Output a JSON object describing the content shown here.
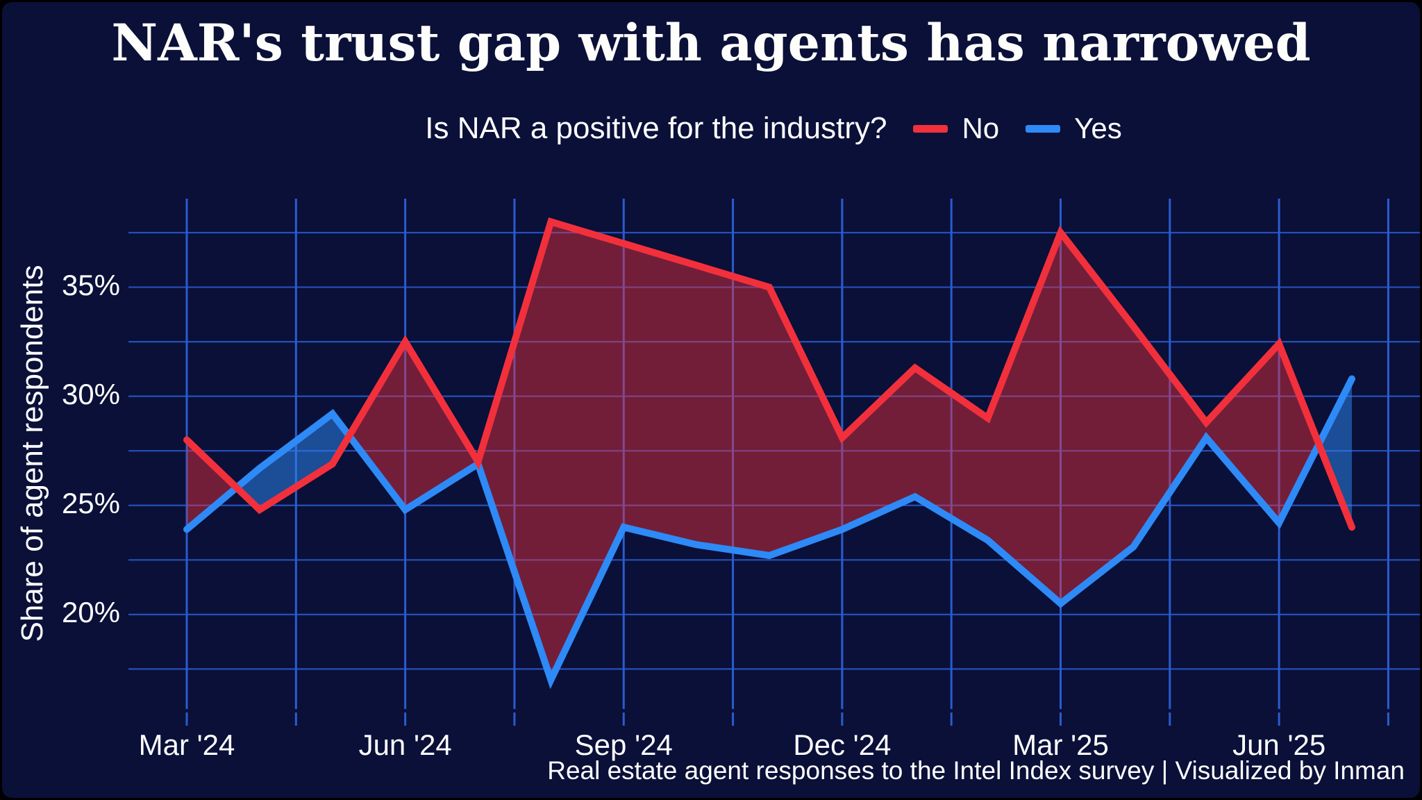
{
  "title": "NAR's trust gap with agents has narrowed",
  "subtitle": "Is NAR a positive for the industry?",
  "legend": {
    "no": {
      "label": "No",
      "color": "#f2303c"
    },
    "yes": {
      "label": "Yes",
      "color": "#2e8af6"
    }
  },
  "y_axis_title": "Share of agent respondents",
  "caption": "Real estate agent responses to the Intel Index survey | Visualized by Inman",
  "colors": {
    "background": "#0a1038",
    "frame": "#000000",
    "gridline": "#2a5cd0",
    "text": "#ffffff",
    "no_line": "#f2303c",
    "yes_line": "#2e8af6",
    "no_fill_region": "#7b2144",
    "yes_fill_region": "#1c4d97"
  },
  "chart_data": {
    "type": "line",
    "title": "NAR's trust gap with agents has narrowed",
    "subtitle": "Is NAR a positive for the industry?",
    "xlabel": "",
    "ylabel": "Share of agent respondents",
    "x": [
      "Mar '24",
      "Apr '24",
      "May '24",
      "Jun '24",
      "Jul '24",
      "Aug '24",
      "Sep '24",
      "Oct '24",
      "Nov '24",
      "Dec '24",
      "Jan '25",
      "Feb '25",
      "Mar '25",
      "Apr '25",
      "May '25",
      "Jun '25",
      "Jul '25"
    ],
    "series": [
      {
        "name": "No",
        "color": "#f2303c",
        "values": [
          28.0,
          24.8,
          26.9,
          32.5,
          27.0,
          38.0,
          37.0,
          36.0,
          35.0,
          28.1,
          31.3,
          29.0,
          37.5,
          33.2,
          28.8,
          32.4,
          24.0
        ]
      },
      {
        "name": "Yes",
        "color": "#2e8af6",
        "values": [
          23.9,
          26.7,
          29.2,
          24.8,
          26.9,
          17.0,
          24.0,
          23.2,
          22.7,
          23.9,
          25.4,
          23.4,
          20.5,
          23.1,
          28.1,
          24.2,
          30.8
        ]
      }
    ],
    "y_ticks": [
      {
        "label": "35%",
        "value": 35
      },
      {
        "label": "30%",
        "value": 30
      },
      {
        "label": "25%",
        "value": 25
      },
      {
        "label": "20%",
        "value": 20
      }
    ],
    "x_tick_labels": [
      {
        "label": "Mar '24",
        "month_index": 0
      },
      {
        "label": "Jun '24",
        "month_index": 3
      },
      {
        "label": "Sep '24",
        "month_index": 6
      },
      {
        "label": "Dec '24",
        "month_index": 9
      },
      {
        "label": "Mar '25",
        "month_index": 12
      },
      {
        "label": "Jun '25",
        "month_index": 15
      }
    ],
    "ylim": [
      15.7,
      39.1
    ],
    "gridlines": {
      "horizontal_step_pct": 2.5,
      "vertical_step_months": 1.5,
      "visible": true
    },
    "legend_position": "top",
    "units": "percent of agent respondents"
  }
}
